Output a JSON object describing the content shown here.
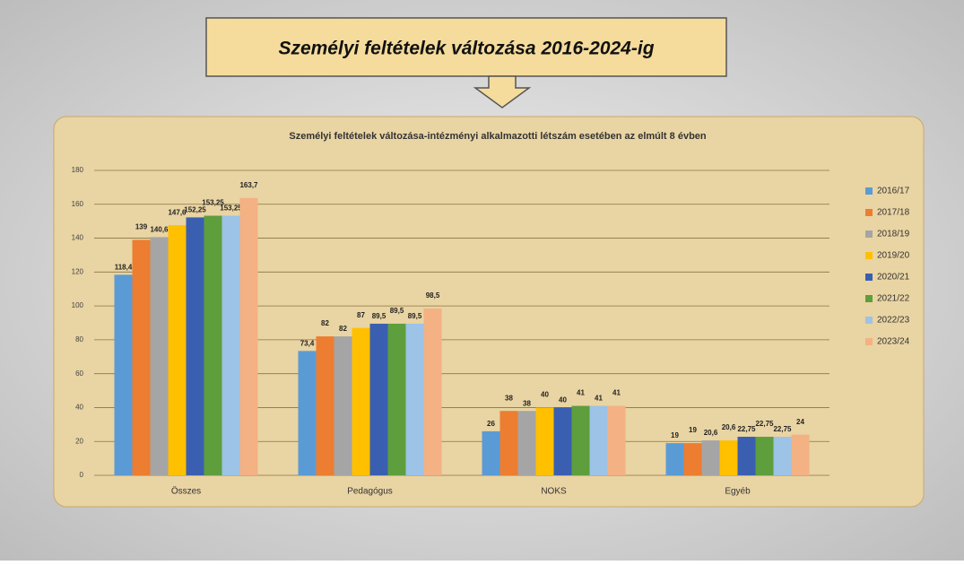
{
  "slide_title": "Személyi feltételek változása 2016-2024-ig",
  "chart_data": {
    "type": "bar",
    "title": "Személyi feltételek változása-intézményi alkalmazotti létszám esetében az elmúlt 8 évben",
    "categories": [
      "Összes",
      "Pedagógus",
      "NOKS",
      "Egyéb"
    ],
    "series": [
      {
        "name": "2016/17",
        "color": "#5b9bd5",
        "values": [
          118.4,
          73.4,
          26,
          19
        ],
        "value_labels": [
          "118,4",
          "73,4",
          "26",
          "19"
        ]
      },
      {
        "name": "2017/18",
        "color": "#ed7d31",
        "values": [
          139,
          82,
          38,
          19
        ],
        "value_labels": [
          "139",
          "82",
          "38",
          "19"
        ]
      },
      {
        "name": "2018/19",
        "color": "#a5a5a5",
        "values": [
          140.6,
          82,
          38,
          20.6
        ],
        "value_labels": [
          "140,6",
          "82",
          "38",
          "20,6"
        ]
      },
      {
        "name": "2019/20",
        "color": "#ffc000",
        "values": [
          147.6,
          87,
          40,
          20.6
        ],
        "value_labels": [
          "147,6",
          "87",
          "40",
          "20,6"
        ]
      },
      {
        "name": "2020/21",
        "color": "#3a5fb0",
        "values": [
          152.25,
          89.5,
          40,
          22.75
        ],
        "value_labels": [
          "152,25",
          "89,5",
          "40",
          "22,75"
        ]
      },
      {
        "name": "2021/22",
        "color": "#5e9e3c",
        "values": [
          153.25,
          89.5,
          41,
          22.75
        ],
        "value_labels": [
          "153,25",
          "89,5",
          "41",
          "22,75"
        ]
      },
      {
        "name": "2022/23",
        "color": "#9dc3e6",
        "values": [
          153.25,
          89.5,
          41,
          22.75
        ],
        "value_labels": [
          "153,25",
          "89,5",
          "41",
          "22,75"
        ]
      },
      {
        "name": "2023/24",
        "color": "#f4b183",
        "values": [
          163.7,
          98.5,
          41,
          24
        ],
        "value_labels": [
          "163,7",
          "98,5",
          "41",
          "24"
        ]
      }
    ],
    "ylim": [
      0,
      180
    ],
    "yticks": [
      0,
      20,
      40,
      60,
      80,
      100,
      120,
      140,
      160,
      180
    ],
    "grid": true,
    "legend": "right"
  }
}
